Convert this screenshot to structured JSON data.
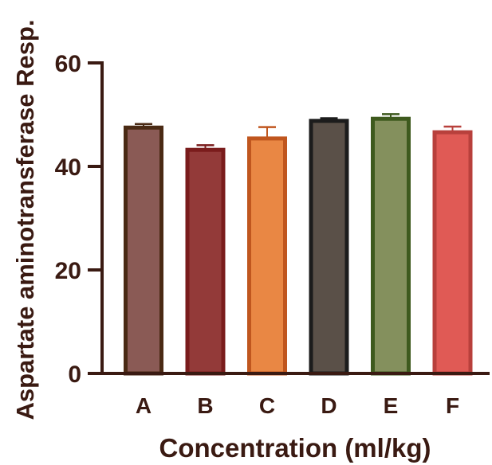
{
  "chart_data": {
    "type": "bar",
    "title": "",
    "xlabel": "Concentration (ml/kg)",
    "ylabel": "Aspartate aminotransferase Resp.",
    "categories": [
      "A",
      "B",
      "C",
      "D",
      "E",
      "F"
    ],
    "values": [
      47.5,
      43.2,
      45.4,
      48.8,
      49.2,
      46.6
    ],
    "error": [
      0.7,
      0.9,
      2.2,
      0.5,
      0.9,
      1.1
    ],
    "ylim": [
      0,
      60
    ],
    "yticks": [
      0,
      20,
      40,
      60
    ],
    "ytick_labels": [
      "0",
      "20",
      "40",
      "60"
    ],
    "grid": false,
    "fill_colors": [
      "#8a5a55",
      "#933a39",
      "#e98744",
      "#5a5048",
      "#84905d",
      "#e05a55"
    ],
    "edge_colors": [
      "#4a2a14",
      "#7a1c1c",
      "#c0561e",
      "#1c1c1c",
      "#3e5a1e",
      "#b8403c"
    ],
    "axis_color": "#3a1a12"
  }
}
